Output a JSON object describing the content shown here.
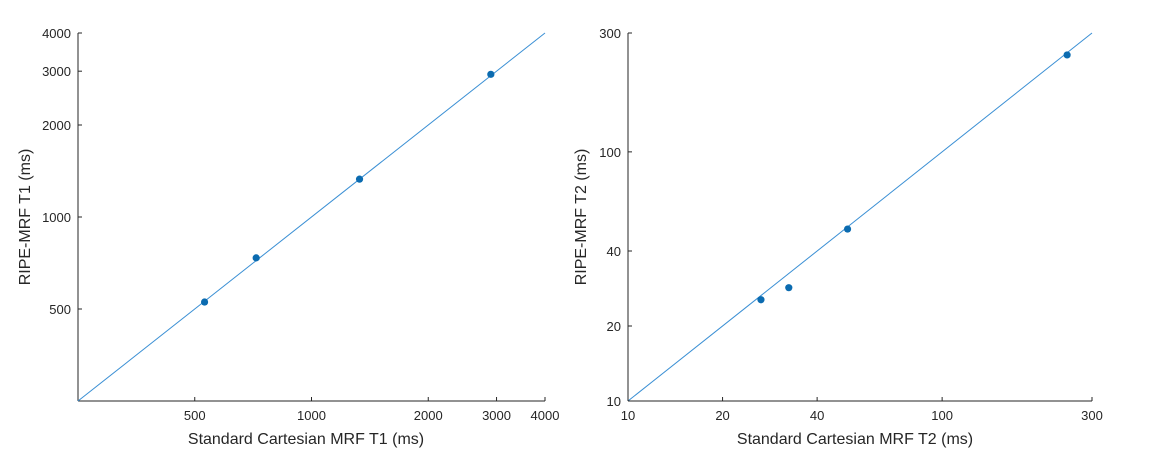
{
  "chart_data": [
    {
      "type": "scatter",
      "xscale": "log",
      "yscale": "log",
      "xlabel": "Standard Cartesian MRF T1 (ms)",
      "ylabel": "RIPE-MRF T1 (ms)",
      "xlim": [
        250,
        4000
      ],
      "ylim": [
        250,
        4000
      ],
      "xticks": [
        500,
        1000,
        2000,
        3000,
        4000
      ],
      "yticks": [
        500,
        1000,
        2000,
        3000,
        4000
      ],
      "xtick_labels": [
        "500",
        "1000",
        "2000",
        "3000",
        "4000"
      ],
      "ytick_labels": [
        "500",
        "1000",
        "2000",
        "3000",
        "4000"
      ],
      "identity_line": true,
      "point_color": "#0b6bb0",
      "line_color": "#3a8fd4",
      "points": [
        {
          "x": 530,
          "y": 527
        },
        {
          "x": 720,
          "y": 735
        },
        {
          "x": 1330,
          "y": 1330
        },
        {
          "x": 2900,
          "y": 2930
        }
      ]
    },
    {
      "type": "scatter",
      "xscale": "log",
      "yscale": "log",
      "xlabel": "Standard Cartesian MRF T2 (ms)",
      "ylabel": "RIPE-MRF T2 (ms)",
      "xlim": [
        10,
        300
      ],
      "ylim": [
        10,
        300
      ],
      "xticks": [
        10,
        20,
        40,
        100,
        300
      ],
      "yticks": [
        10,
        20,
        40,
        100,
        300
      ],
      "xtick_labels": [
        "10",
        "20",
        "40",
        "100",
        "300"
      ],
      "ytick_labels": [
        "10",
        "20",
        "40",
        "100",
        "300"
      ],
      "identity_line": true,
      "point_color": "#0b6bb0",
      "line_color": "#3a8fd4",
      "points": [
        {
          "x": 26.5,
          "y": 25.5
        },
        {
          "x": 32.5,
          "y": 28.5
        },
        {
          "x": 50,
          "y": 49
        },
        {
          "x": 250,
          "y": 245
        }
      ]
    }
  ]
}
